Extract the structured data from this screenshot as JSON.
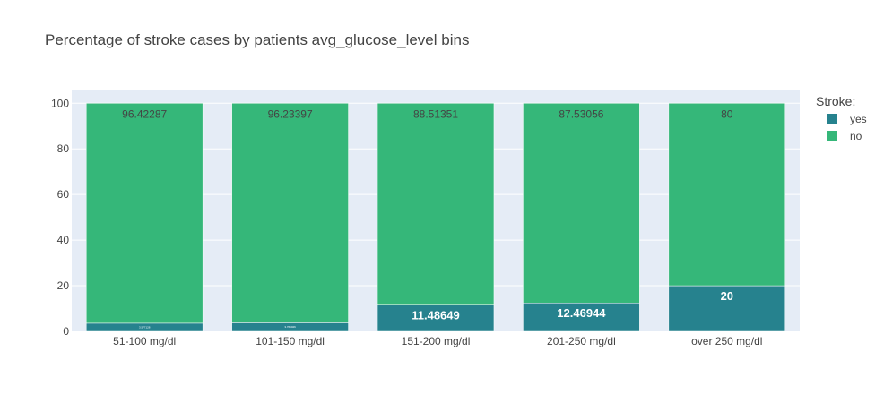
{
  "chart_data": {
    "type": "bar",
    "barmode": "stack",
    "title": "Percentage of stroke cases by patients avg_glucose_level bins",
    "xlabel": "",
    "ylabel": "",
    "ylim": [
      0,
      100
    ],
    "yticks": [
      "0",
      "20",
      "40",
      "60",
      "80",
      "100"
    ],
    "categories": [
      "51-100 mg/dl",
      "101-150 mg/dl",
      "151-200 mg/dl",
      "201-250 mg/dl",
      "over 250 mg/dl"
    ],
    "legend_title": "Stroke:",
    "legend_position": "top-right",
    "grid": true,
    "series": [
      {
        "name": "yes",
        "color": "#26828e",
        "values": [
          3.57713,
          3.76603,
          11.48649,
          12.46944,
          20
        ],
        "labels": [
          "3.577128",
          "3.766026",
          "11.48649",
          "12.46944",
          "20"
        ]
      },
      {
        "name": "no",
        "color": "#35b779",
        "values": [
          96.42287,
          96.23397,
          88.51351,
          87.53056,
          80
        ],
        "labels": [
          "96.42287",
          "96.23397",
          "88.51351",
          "87.53056",
          "80"
        ]
      }
    ],
    "plot_background": "#e5ecf6",
    "gridline_color": "#ffffff"
  }
}
